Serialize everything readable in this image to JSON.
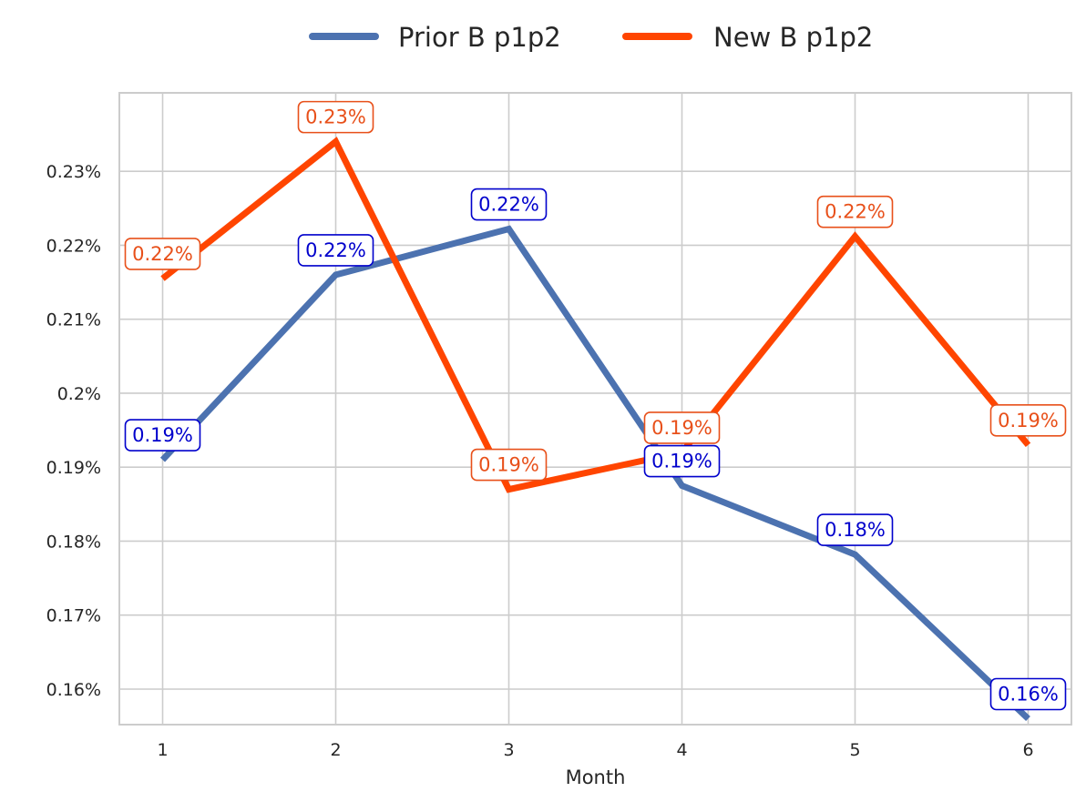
{
  "chart_data": {
    "type": "line",
    "title": "",
    "xlabel": "Month",
    "ylabel": "",
    "x": [
      1,
      2,
      3,
      4,
      5,
      6
    ],
    "xlim": [
      0.75,
      6.25
    ],
    "ylim": [
      0.1552,
      0.2406
    ],
    "y_ticks": [
      0.16,
      0.17,
      0.18,
      0.19,
      0.2,
      0.21,
      0.22,
      0.23
    ],
    "y_tick_labels": [
      "0.16%",
      "0.17%",
      "0.18%",
      "0.19%",
      "0.2%",
      "0.21%",
      "0.22%",
      "0.23%"
    ],
    "grid": true,
    "legend_position": "top-center",
    "series": [
      {
        "name": "Prior B p1p2",
        "color": "#4c72b0",
        "label_color": "#0000cc",
        "values": [
          0.191,
          0.216,
          0.2222,
          0.1875,
          0.1782,
          0.156
        ],
        "data_labels": [
          "0.19%",
          "0.22%",
          "0.22%",
          "0.19%",
          "0.18%",
          "0.16%"
        ]
      },
      {
        "name": "New B p1p2",
        "color": "#ff4500",
        "label_color": "#e8501a",
        "values": [
          0.2155,
          0.234,
          0.187,
          0.192,
          0.2212,
          0.193
        ],
        "data_labels": [
          "0.22%",
          "0.23%",
          "0.19%",
          "0.19%",
          "0.22%",
          "0.19%"
        ]
      }
    ]
  }
}
